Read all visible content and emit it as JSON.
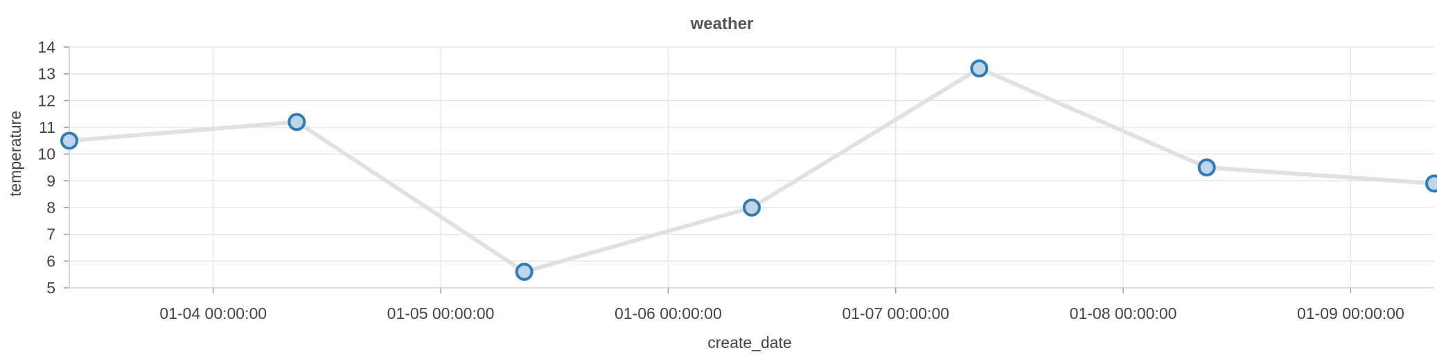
{
  "chart_data": {
    "type": "line",
    "title": "weather",
    "xlabel": "create_date",
    "ylabel": "temperature",
    "x_dates": [
      "01-03 08:49:00",
      "01-04 08:49:00",
      "01-05 08:49:00",
      "01-06 08:49:00",
      "01-07 08:49:00",
      "01-08 08:49:00",
      "01-09 08:49:00"
    ],
    "series": [
      {
        "values": [
          10.5,
          11.2,
          5.6,
          8.0,
          13.2,
          9.5,
          8.9
        ]
      }
    ],
    "xlim": [
      "01-03 08:49:00",
      "01-09 08:49:00"
    ],
    "ylim": [
      5,
      14
    ],
    "x_ticks": [
      "01-04 00:00:00",
      "01-05 00:00:00",
      "01-06 00:00:00",
      "01-07 00:00:00",
      "01-08 00:00:00",
      "01-09 00:00:00"
    ],
    "y_ticks": [
      5,
      6,
      7,
      8,
      9,
      10,
      11,
      12,
      13,
      14
    ],
    "grid": true,
    "colors": {
      "line": "#e1e1e1",
      "marker_stroke": "#2e7bb8",
      "marker_fill": "#bed6ea",
      "grid": "#e3e3e3",
      "axis": "#cfcfcf",
      "text": "#444444",
      "title": "#555555"
    }
  }
}
